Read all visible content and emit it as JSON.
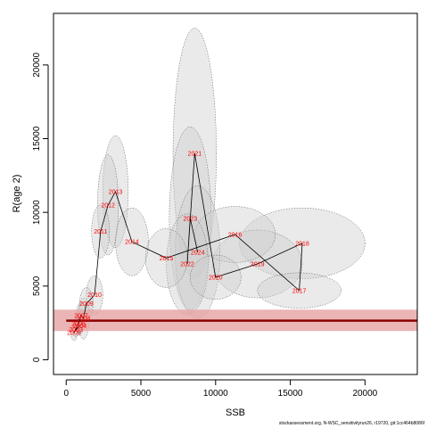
{
  "chart_data": {
    "type": "scatter",
    "xlabel": "SSB",
    "ylabel": "R(age 2)",
    "xlim": [
      -850,
      23500
    ],
    "ylim": [
      -1000,
      23500
    ],
    "x_ticks": [
      0,
      5000,
      10000,
      15000,
      20000
    ],
    "y_ticks": [
      0,
      5000,
      10000,
      15000,
      20000
    ],
    "reference_line": {
      "y": 2650,
      "band": [
        1950,
        3400
      ],
      "color": "#8b0000",
      "band_color": "#e6a3a3"
    },
    "colors": {
      "ellipse_fill": "#cccccc",
      "ellipse_stroke": "#555555",
      "path": "#000000",
      "label": "#ff0000"
    },
    "points": [
      {
        "year": "2003",
        "x": 650,
        "y": 2050,
        "sx": 220,
        "sy": 500
      },
      {
        "year": "2004",
        "x": 900,
        "y": 2300,
        "sx": 250,
        "sy": 550
      },
      {
        "year": "2005",
        "x": 520,
        "y": 1850,
        "sx": 220,
        "sy": 550
      },
      {
        "year": "2006",
        "x": 820,
        "y": 2450,
        "sx": 280,
        "sy": 700
      },
      {
        "year": "2007",
        "x": 1000,
        "y": 3000,
        "sx": 320,
        "sy": 900
      },
      {
        "year": "2008",
        "x": 1150,
        "y": 2800,
        "sx": 380,
        "sy": 1400
      },
      {
        "year": "2009",
        "x": 1350,
        "y": 3800,
        "sx": 450,
        "sy": 1100
      },
      {
        "year": "2010",
        "x": 1900,
        "y": 4400,
        "sx": 550,
        "sy": 1300
      },
      {
        "year": "2011",
        "x": 2300,
        "y": 8700,
        "sx": 600,
        "sy": 1800
      },
      {
        "year": "2012",
        "x": 2800,
        "y": 10500,
        "sx": 700,
        "sy": 3400
      },
      {
        "year": "2013",
        "x": 3300,
        "y": 11400,
        "sx": 850,
        "sy": 3800
      },
      {
        "year": "2014",
        "x": 4400,
        "y": 8000,
        "sx": 1100,
        "sy": 2300
      },
      {
        "year": "2015",
        "x": 6700,
        "y": 6900,
        "sx": 1400,
        "sy": 2000
      },
      {
        "year": "2016",
        "x": 11300,
        "y": 8500,
        "sx": 2700,
        "sy": 1900
      },
      {
        "year": "2017",
        "x": 15600,
        "y": 4700,
        "sx": 2800,
        "sy": 1200
      },
      {
        "year": "2018",
        "x": 15800,
        "y": 7900,
        "sx": 4200,
        "sy": 2400
      },
      {
        "year": "2019",
        "x": 12800,
        "y": 6500,
        "sx": 3000,
        "sy": 2300
      },
      {
        "year": "2020",
        "x": 10000,
        "y": 5600,
        "sx": 1700,
        "sy": 1500
      },
      {
        "year": "2021",
        "x": 8600,
        "y": 14000,
        "sx": 1450,
        "sy": 8500
      },
      {
        "year": "2022",
        "x": 8100,
        "y": 6500,
        "sx": 1400,
        "sy": 3400
      },
      {
        "year": "2023",
        "x": 8300,
        "y": 9600,
        "sx": 1400,
        "sy": 6200
      },
      {
        "year": "2024",
        "x": 8800,
        "y": 7300,
        "sx": 1500,
        "sy": 4500
      }
    ],
    "path_order": [
      "2003",
      "2004",
      "2005",
      "2006",
      "2007",
      "2008",
      "2009",
      "2010",
      "2011",
      "2012",
      "2013",
      "2014",
      "2015",
      "2016",
      "2017",
      "2018",
      "2019",
      "2020",
      "2021",
      "2022",
      "2023",
      "2024"
    ]
  },
  "footnote": "stockassessment.org, N-WSC_sensitivityrun26, r19720, git:1cc464b8086f"
}
